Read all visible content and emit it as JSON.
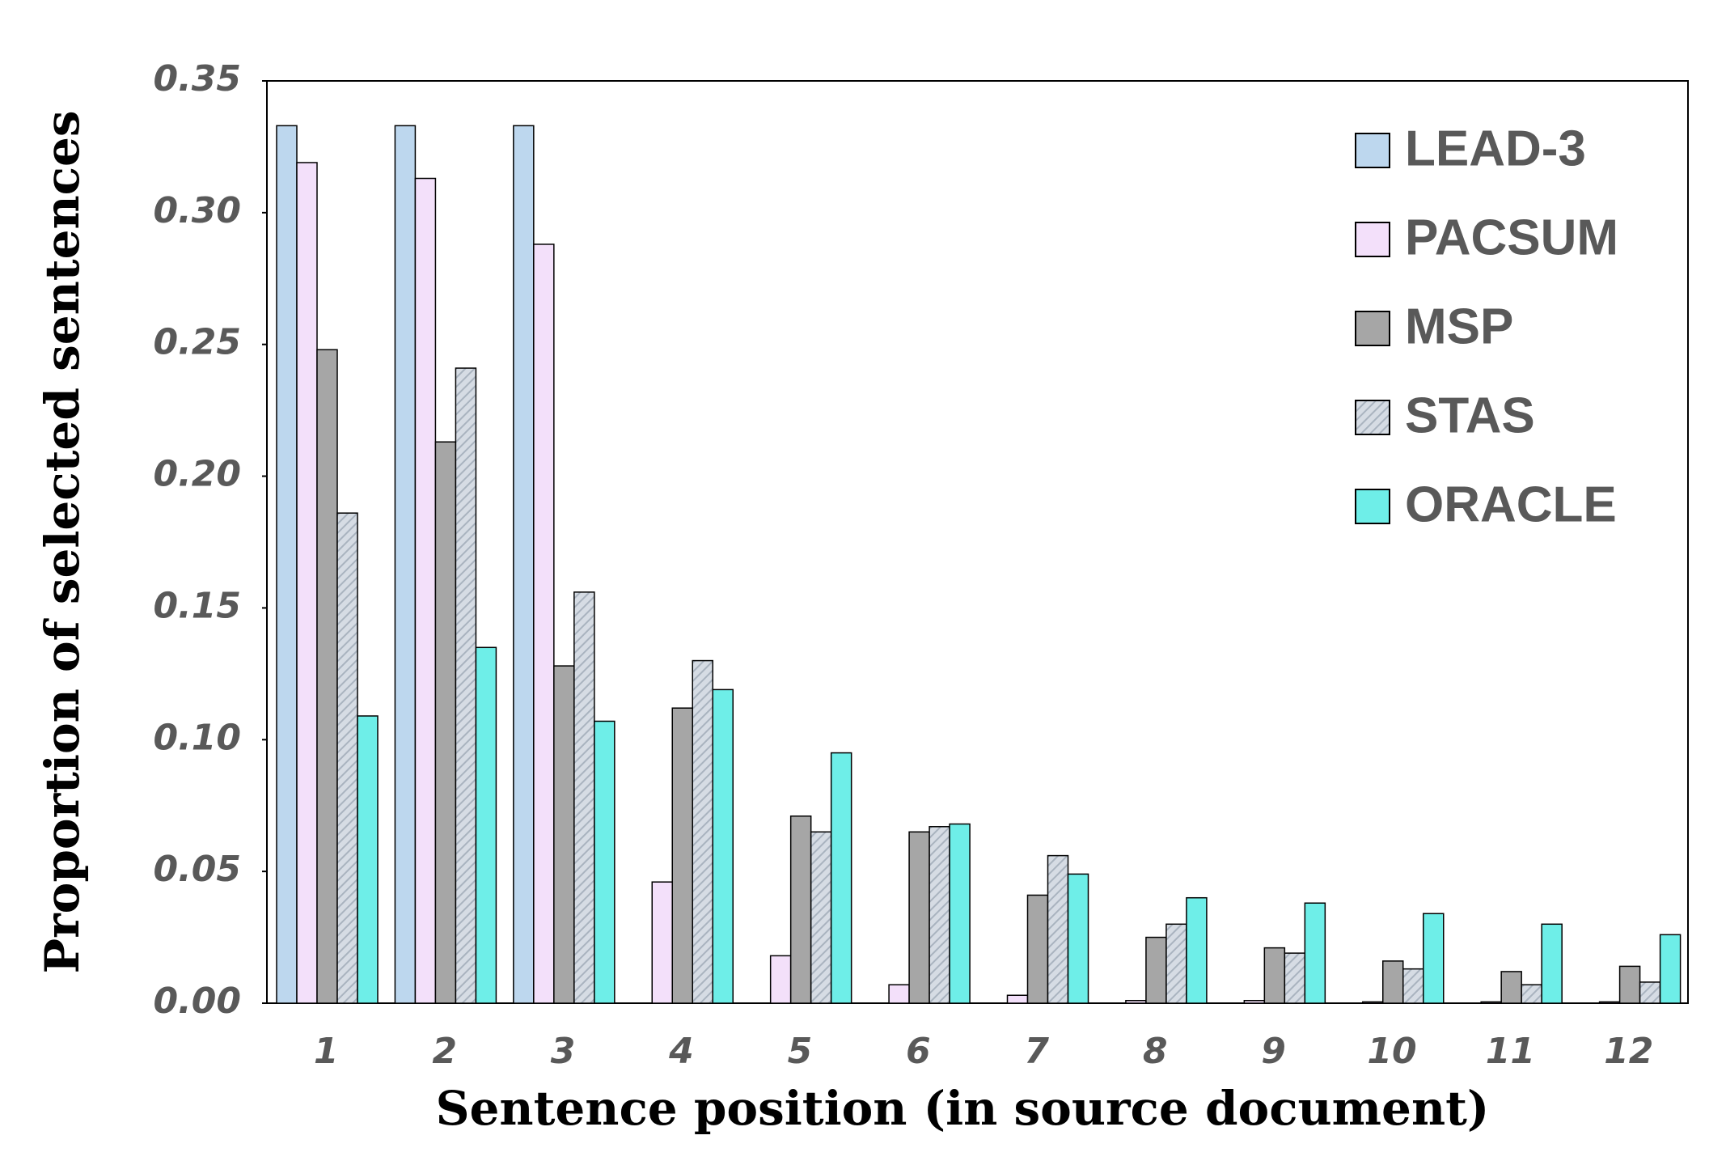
{
  "chart_data": {
    "type": "bar",
    "x_label": "Sentence position (in source document)",
    "y_label": "Proportion of selected sentences",
    "categories": [
      "1",
      "2",
      "3",
      "4",
      "5",
      "6",
      "7",
      "8",
      "9",
      "10",
      "11",
      "12"
    ],
    "series": [
      {
        "name": "LEAD-3",
        "color": "#bdd7ee",
        "values": [
          0.333,
          0.333,
          0.333,
          0,
          0,
          0,
          0,
          0,
          0,
          0,
          0,
          0
        ]
      },
      {
        "name": "PACSUM",
        "color": "#f3e0fa",
        "values": [
          0.319,
          0.313,
          0.288,
          0.046,
          0.018,
          0.007,
          0.003,
          0.001,
          0.001,
          0.0005,
          0.0005,
          0.0005
        ]
      },
      {
        "name": "MSP",
        "color": "#a6a6a6",
        "values": [
          0.248,
          0.213,
          0.128,
          0.112,
          0.071,
          0.065,
          0.041,
          0.025,
          0.021,
          0.016,
          0.012,
          0.014
        ]
      },
      {
        "name": "STAS",
        "color": "#d6dce4",
        "pattern": "hatch",
        "values": [
          0.186,
          0.241,
          0.156,
          0.13,
          0.065,
          0.067,
          0.056,
          0.03,
          0.019,
          0.013,
          0.007,
          0.008
        ]
      },
      {
        "name": "ORACLE",
        "color": "#6eeee8",
        "values": [
          0.109,
          0.135,
          0.107,
          0.119,
          0.095,
          0.068,
          0.049,
          0.04,
          0.038,
          0.034,
          0.03,
          0.026
        ]
      }
    ],
    "ylim": [
      0,
      0.35
    ],
    "yticks": [
      {
        "value": 0,
        "label": "0.00"
      },
      0.05,
      {
        "value": 0.1,
        "label": "0.10"
      },
      0.15,
      {
        "value": 0.2,
        "label": "0.20"
      },
      0.25,
      {
        "value": 0.3,
        "label": "0.30"
      },
      0.35
    ],
    "grid": false,
    "legend": "upper right"
  }
}
